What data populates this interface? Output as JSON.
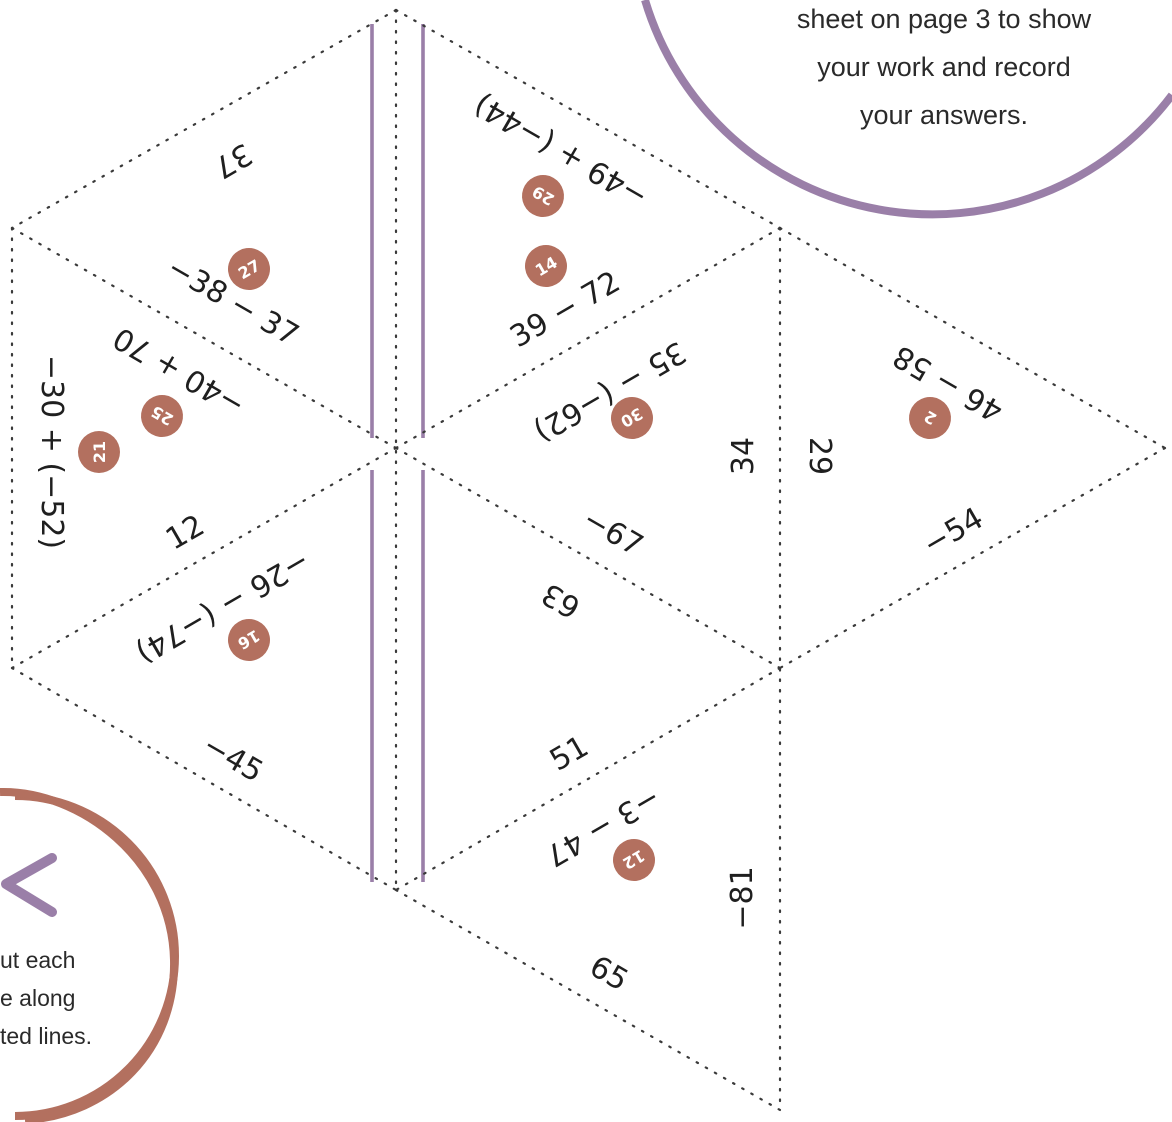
{
  "instructions": {
    "record_lines": [
      "sheet on page 3 to show",
      "your work and record",
      "your answers."
    ],
    "cut_lines": [
      "ut each",
      "e along",
      "ted lines."
    ]
  },
  "colors": {
    "badge": "#b3705f",
    "fold_line": "#9a7fa8",
    "record_circle": "#9a7fa8",
    "cut_circle": "#b3705f"
  },
  "tiles": [
    {
      "text": "37"
    },
    {
      "text": "−49 + (−44)"
    },
    {
      "text": "29"
    },
    {
      "text": "27"
    },
    {
      "text": "−38 − 37"
    },
    {
      "text": "14"
    },
    {
      "text": "39 − 72"
    },
    {
      "text": "−40 + 70"
    },
    {
      "text": "25"
    },
    {
      "text": "35 − (−62)"
    },
    {
      "text": "30"
    },
    {
      "text": "46 − 58"
    },
    {
      "text": "2"
    },
    {
      "text": "−30 + (−52)"
    },
    {
      "text": "21"
    },
    {
      "text": "34"
    },
    {
      "text": "29"
    },
    {
      "text": "12"
    },
    {
      "text": "−67"
    },
    {
      "text": "−54"
    },
    {
      "text": "−26 − (−74)"
    },
    {
      "text": "63"
    },
    {
      "text": "16"
    },
    {
      "text": "−45"
    },
    {
      "text": "51"
    },
    {
      "text": "−3 − 47"
    },
    {
      "text": "12"
    },
    {
      "text": "−81"
    },
    {
      "text": "65"
    }
  ]
}
